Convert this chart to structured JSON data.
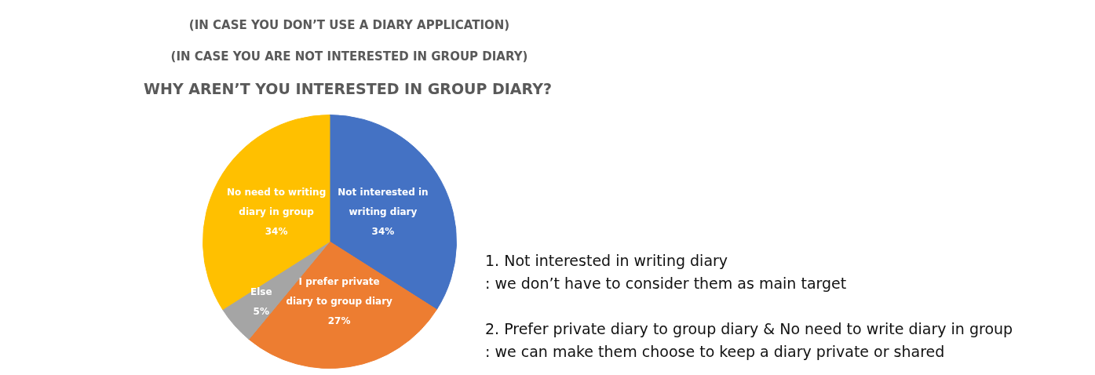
{
  "chart_data": {
    "type": "pie",
    "title": "WHY AREN’T YOU INTERESTED IN GROUP DIARY?",
    "subtitle": "(IN CASE YOU DON’T USE A DIARY APPLICATION)",
    "categories": [
      "Not interested in writing diary",
      "I prefer private diary to group diary",
      "Else",
      "No need to writing diary in group"
    ],
    "values": [
      34,
      27,
      5,
      34
    ],
    "colors": [
      "#4472c4",
      "#ed7d31",
      "#a5a5a5",
      "#ffc000"
    ],
    "value_labels": [
      "34%",
      "27%",
      "5%",
      "34%"
    ],
    "legend": false,
    "annotations": [
      "(IN CASE YOU ARE NOT INTERESTED IN GROUP DIARY)",
      "1.   Not interested in writing diary",
      ": we don’t have to consider them as main target",
      "2. Prefer private diary to group diary & No need to write diary in group",
      ": we can make them choose to keep a diary private or shared"
    ]
  }
}
